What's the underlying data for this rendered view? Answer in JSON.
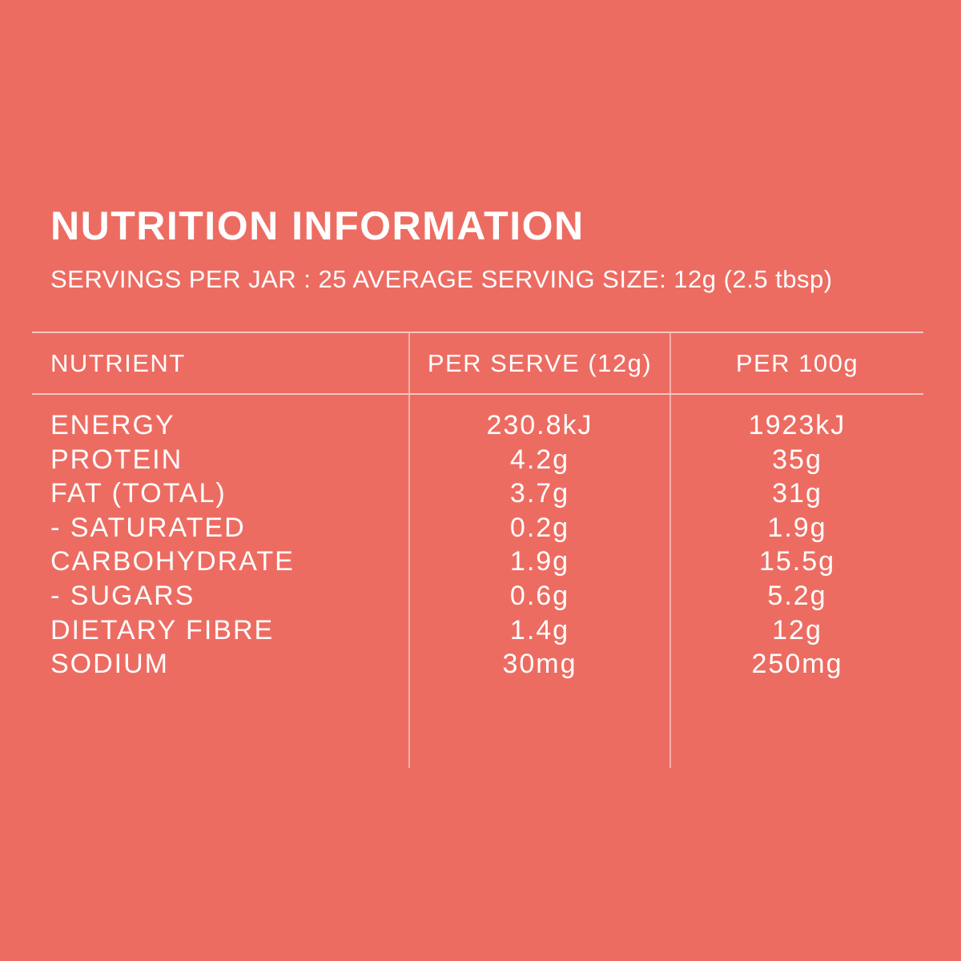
{
  "colors": {
    "background": "#ED6C62",
    "text": "#FFFFFF",
    "divider": "rgba(255,255,255,0.5)"
  },
  "title": "NUTRITION INFORMATION",
  "subtitle": "SERVINGS PER JAR : 25 AVERAGE SERVING SIZE: 12g (2.5 tbsp)",
  "table": {
    "headers": {
      "nutrient": "NUTRIENT",
      "per_serve": "PER SERVE (12g)",
      "per_100g": "PER 100g"
    },
    "rows": [
      {
        "nutrient": "ENERGY",
        "per_serve": "230.8kJ",
        "per_100g": "1923kJ"
      },
      {
        "nutrient": "PROTEIN",
        "per_serve": "4.2g",
        "per_100g": "35g"
      },
      {
        "nutrient": "FAT (TOTAL)",
        "per_serve": "3.7g",
        "per_100g": "31g"
      },
      {
        "nutrient": "- SATURATED",
        "per_serve": "0.2g",
        "per_100g": "1.9g"
      },
      {
        "nutrient": "CARBOHYDRATE",
        "per_serve": "1.9g",
        "per_100g": "15.5g"
      },
      {
        "nutrient": "- SUGARS",
        "per_serve": "0.6g",
        "per_100g": "5.2g"
      },
      {
        "nutrient": "DIETARY FIBRE",
        "per_serve": "1.4g",
        "per_100g": "12g"
      },
      {
        "nutrient": "SODIUM",
        "per_serve": "30mg",
        "per_100g": "250mg"
      }
    ]
  }
}
